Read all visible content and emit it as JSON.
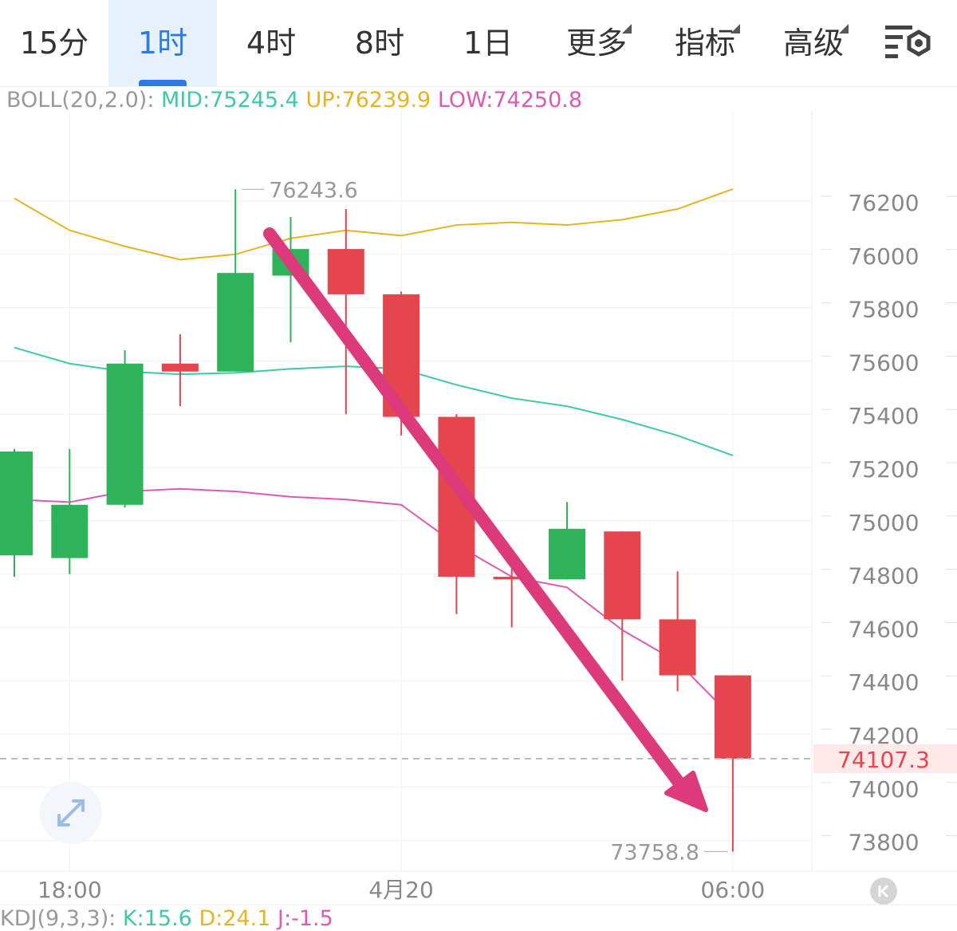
{
  "tabs": [
    {
      "label": "15分",
      "active": false,
      "dropdown": false
    },
    {
      "label": "1时",
      "active": true,
      "dropdown": false
    },
    {
      "label": "4时",
      "active": false,
      "dropdown": false
    },
    {
      "label": "8时",
      "active": false,
      "dropdown": false
    },
    {
      "label": "1日",
      "active": false,
      "dropdown": false
    },
    {
      "label": "更多",
      "active": false,
      "dropdown": true
    },
    {
      "label": "指标",
      "active": false,
      "dropdown": true
    },
    {
      "label": "高级",
      "active": false,
      "dropdown": true
    }
  ],
  "settings_icon": "chart-settings-icon",
  "boll": {
    "label": "BOLL(20,2.0):",
    "mid": "MID:75245.4",
    "up": "UP:76239.9",
    "low": "LOW:74250.8"
  },
  "kdj": {
    "label": "KDJ(9,3,3):",
    "k": "K:15.6",
    "d": "D:24.1",
    "j": "J:-1.5"
  },
  "colors": {
    "up": "#2fb35a",
    "down": "#e5454d",
    "mid": "#3ec9a7",
    "upper": "#e6b422",
    "lower": "#dc5ab4",
    "arrow": "#dc3a7b",
    "label_grey": "#999999",
    "current_price": "#e5454d"
  },
  "chart_data": {
    "type": "candlestick",
    "x_labels": [
      "18:00",
      "4月20",
      "06:00"
    ],
    "y_ticks": [
      76200,
      76000,
      75800,
      75600,
      75400,
      75200,
      75000,
      74800,
      74600,
      74400,
      74200,
      74000,
      73800
    ],
    "y_axis_position": "right",
    "grid": true,
    "candles": [
      {
        "open": 74870,
        "high": 75270,
        "low": 74790,
        "close": 75260
      },
      {
        "open": 74860,
        "high": 75270,
        "low": 74800,
        "close": 75060
      },
      {
        "open": 75060,
        "high": 75640,
        "low": 75050,
        "close": 75590
      },
      {
        "open": 75590,
        "high": 75700,
        "low": 75430,
        "close": 75560
      },
      {
        "open": 75560,
        "high": 76244,
        "low": 75560,
        "close": 75930
      },
      {
        "open": 75920,
        "high": 76140,
        "low": 75670,
        "close": 76020
      },
      {
        "open": 76020,
        "high": 76170,
        "low": 75400,
        "close": 75850
      },
      {
        "open": 75850,
        "high": 75860,
        "low": 75320,
        "close": 75390
      },
      {
        "open": 75390,
        "high": 75400,
        "low": 74650,
        "close": 74790
      },
      {
        "open": 74790,
        "high": 74820,
        "low": 74600,
        "close": 74780
      },
      {
        "open": 74780,
        "high": 75070,
        "low": 74780,
        "close": 74970
      },
      {
        "open": 74960,
        "high": 74960,
        "low": 74400,
        "close": 74630
      },
      {
        "open": 74630,
        "high": 74810,
        "low": 74360,
        "close": 74420
      },
      {
        "open": 74420,
        "high": 74420,
        "low": 73758.8,
        "close": 74107.3
      }
    ],
    "boll_up": [
      76210,
      76090,
      76030,
      75980,
      76000,
      76060,
      76090,
      76070,
      76110,
      76120,
      76110,
      76130,
      76170,
      76245
    ],
    "boll_mid": [
      75650,
      75590,
      75560,
      75550,
      75555,
      75570,
      75580,
      75570,
      75510,
      75460,
      75430,
      75380,
      75320,
      75245
    ],
    "boll_low": [
      75080,
      75070,
      75110,
      75120,
      75110,
      75090,
      75080,
      75060,
      74910,
      74790,
      74750,
      74590,
      74470,
      74260
    ],
    "max_label": "76243.6",
    "min_label": "73758.8",
    "current_price": 74107.3,
    "current_price_label": "74107.3",
    "annotation": "downtrend-arrow"
  }
}
